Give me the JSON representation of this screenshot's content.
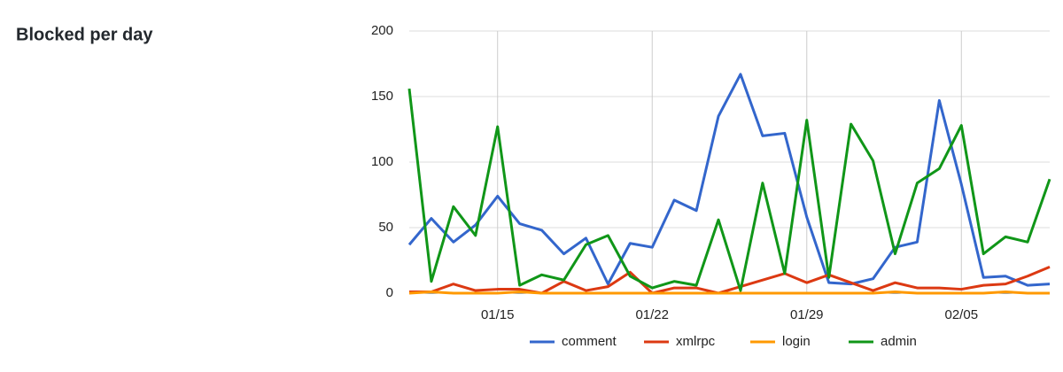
{
  "chart_data": {
    "type": "line",
    "title": "Blocked per day",
    "categories": [
      null,
      null,
      null,
      null,
      "01/15",
      null,
      null,
      null,
      null,
      null,
      null,
      "01/22",
      null,
      null,
      null,
      null,
      null,
      null,
      "01/29",
      null,
      null,
      null,
      null,
      null,
      null,
      "02/05",
      null,
      null,
      null,
      null
    ],
    "series": [
      {
        "name": "comment",
        "color": "#3366cc",
        "values": [
          37,
          57,
          39,
          52,
          74,
          53,
          48,
          30,
          42,
          7,
          38,
          35,
          71,
          63,
          135,
          167,
          120,
          122,
          58,
          8,
          7,
          11,
          35,
          39,
          147,
          83,
          12,
          13,
          6,
          7
        ]
      },
      {
        "name": "xmlrpc",
        "color": "#dc3912",
        "values": [
          1,
          1,
          7,
          2,
          3,
          3,
          0,
          9,
          2,
          5,
          16,
          0,
          4,
          4,
          0,
          5,
          10,
          15,
          8,
          14,
          8,
          2,
          8,
          4,
          4,
          3,
          6,
          7,
          13,
          20
        ]
      },
      {
        "name": "login",
        "color": "#ff9900",
        "values": [
          0,
          1,
          0,
          0,
          0,
          1,
          0,
          0,
          0,
          0,
          0,
          0,
          0,
          0,
          0,
          0,
          0,
          0,
          0,
          0,
          0,
          0,
          1,
          0,
          0,
          0,
          0,
          1,
          0,
          0
        ]
      },
      {
        "name": "admin",
        "color": "#109618",
        "values": [
          156,
          9,
          66,
          44,
          127,
          6,
          14,
          10,
          37,
          44,
          13,
          4,
          9,
          6,
          56,
          2,
          84,
          15,
          132,
          12,
          129,
          101,
          30,
          84,
          95,
          128,
          30,
          43,
          39,
          87
        ]
      }
    ],
    "ylim": [
      0,
      200
    ],
    "yticks": [
      0,
      50,
      100,
      150,
      200
    ],
    "grid": true,
    "legend": "bottom"
  }
}
